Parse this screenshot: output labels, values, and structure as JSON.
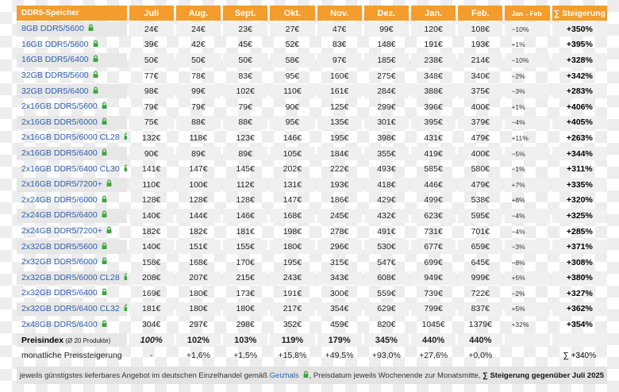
{
  "chart_data": {
    "type": "table",
    "header": {
      "product_column": "DDR5-Speicher",
      "months": [
        "Juli",
        "Aug.",
        "Sept.",
        "Okt.",
        "Nov.",
        "Dez.",
        "Jan.",
        "Feb."
      ],
      "change_column": "Jan→Feb",
      "total_column": "∑ Steigerung"
    },
    "rows": [
      {
        "name": "8GB DDR5/5600",
        "prices": [
          "24€",
          "24€",
          "23€",
          "27€",
          "47€",
          "99€",
          "120€",
          "108€"
        ],
        "change": "−10%",
        "total": "+350%"
      },
      {
        "name": "16GB DDR5/5600",
        "prices": [
          "39€",
          "42€",
          "45€",
          "52€",
          "83€",
          "148€",
          "191€",
          "193€"
        ],
        "change": "+1%",
        "total": "+395%"
      },
      {
        "name": "16GB DDR5/6400",
        "prices": [
          "50€",
          "50€",
          "50€",
          "58€",
          "97€",
          "185€",
          "238€",
          "214€"
        ],
        "change": "−10%",
        "total": "+328%"
      },
      {
        "name": "32GB DDR5/5600",
        "prices": [
          "77€",
          "78€",
          "83€",
          "95€",
          "160€",
          "275€",
          "348€",
          "340€"
        ],
        "change": "−2%",
        "total": "+342%"
      },
      {
        "name": "32GB DDR5/6400",
        "prices": [
          "98€",
          "99€",
          "102€",
          "110€",
          "161€",
          "284€",
          "388€",
          "375€"
        ],
        "change": "−3%",
        "total": "+283%"
      },
      {
        "name": "2x16GB DDR5/5600",
        "prices": [
          "79€",
          "79€",
          "79€",
          "90€",
          "125€",
          "299€",
          "396€",
          "400€"
        ],
        "change": "+1%",
        "total": "+406%"
      },
      {
        "name": "2x16GB DDR5/6000",
        "prices": [
          "75€",
          "88€",
          "88€",
          "95€",
          "135€",
          "301€",
          "395€",
          "379€"
        ],
        "change": "−4%",
        "total": "+405%"
      },
      {
        "name": "2x16GB DDR5/6000 CL28",
        "prices": [
          "132€",
          "118€",
          "123€",
          "146€",
          "195€",
          "398€",
          "431€",
          "479€"
        ],
        "change": "+11%",
        "total": "+263%"
      },
      {
        "name": "2x16GB DDR5/6400",
        "prices": [
          "90€",
          "89€",
          "89€",
          "105€",
          "184€",
          "355€",
          "419€",
          "400€"
        ],
        "change": "−5%",
        "total": "+344%"
      },
      {
        "name": "2x16GB DDR5/6400 CL30",
        "prices": [
          "141€",
          "147€",
          "145€",
          "202€",
          "222€",
          "493€",
          "585€",
          "580€"
        ],
        "change": "−1%",
        "total": "+311%"
      },
      {
        "name": "2x16GB DDR5/7200+",
        "prices": [
          "110€",
          "100€",
          "112€",
          "131€",
          "193€",
          "418€",
          "446€",
          "479€"
        ],
        "change": "+7%",
        "total": "+335%"
      },
      {
        "name": "2x24GB DDR5/6000",
        "prices": [
          "128€",
          "128€",
          "128€",
          "147€",
          "186€",
          "429€",
          "499€",
          "538€"
        ],
        "change": "+8%",
        "total": "+320%"
      },
      {
        "name": "2x24GB DDR5/6400",
        "prices": [
          "140€",
          "144€",
          "146€",
          "168€",
          "245€",
          "432€",
          "623€",
          "595€"
        ],
        "change": "−4%",
        "total": "+325%"
      },
      {
        "name": "2x24GB DDR5/7200+",
        "prices": [
          "182€",
          "182€",
          "181€",
          "198€",
          "278€",
          "491€",
          "731€",
          "701€"
        ],
        "change": "−4%",
        "total": "+285%"
      },
      {
        "name": "2x32GB DDR5/5600",
        "prices": [
          "140€",
          "151€",
          "155€",
          "180€",
          "296€",
          "530€",
          "677€",
          "659€"
        ],
        "change": "−3%",
        "total": "+371%"
      },
      {
        "name": "2x32GB DDR5/6000",
        "prices": [
          "158€",
          "168€",
          "170€",
          "195€",
          "315€",
          "547€",
          "699€",
          "645€"
        ],
        "change": "−8%",
        "total": "+308%"
      },
      {
        "name": "2x32GB DDR5/6000 CL28",
        "prices": [
          "208€",
          "207€",
          "215€",
          "243€",
          "343€",
          "608€",
          "949€",
          "999€"
        ],
        "change": "+5%",
        "total": "+380%"
      },
      {
        "name": "2x32GB DDR5/6400",
        "prices": [
          "169€",
          "180€",
          "173€",
          "191€",
          "300€",
          "559€",
          "739€",
          "722€"
        ],
        "change": "−2%",
        "total": "+327%"
      },
      {
        "name": "2x32GB DDR5/6400 CL32",
        "prices": [
          "181€",
          "180€",
          "180€",
          "217€",
          "354€",
          "629€",
          "799€",
          "837€"
        ],
        "change": "+5%",
        "total": "+362%"
      },
      {
        "name": "2x48GB DDR5/6400",
        "prices": [
          "304€",
          "297€",
          "298€",
          "352€",
          "459€",
          "820€",
          "1045€",
          "1379€"
        ],
        "change": "+32%",
        "total": "+354%"
      }
    ],
    "price_index_row": {
      "label": "Preisindex",
      "sublabel": "(Ø 20 Produkte)",
      "values": [
        "100%",
        "102%",
        "103%",
        "119%",
        "179%",
        "345%",
        "440%",
        "440%"
      ],
      "change": "",
      "total": ""
    },
    "monthly_change_row": {
      "label": "monatliche Preissteigerung",
      "values": [
        "-",
        "+1,6%",
        "+1,5%",
        "+15,8%",
        "+49,5%",
        "+93,0%",
        "+27,6%",
        "+0,0%"
      ],
      "change": "",
      "total": "∑ +340%"
    }
  },
  "footer": {
    "part1": "jeweils günstigstes lieferbares Angebot im deutschen Einzelhandel gemäß ",
    "link_label": "Geizhals",
    "part2": ", Preisdatum jeweils Wochenende zur Monatsmitte, ",
    "bold_part": "∑ Steigerung gegenüber Juli 2025"
  },
  "colors": {
    "header_orange": "#F49C2C",
    "link_blue": "#2E5FAC",
    "lock_green": "#3DA53D",
    "stripe_row_bg": "#F0F0F0",
    "stripe_label_bg": "#E7E7E7",
    "footer_bg": "#E3E3E3"
  }
}
